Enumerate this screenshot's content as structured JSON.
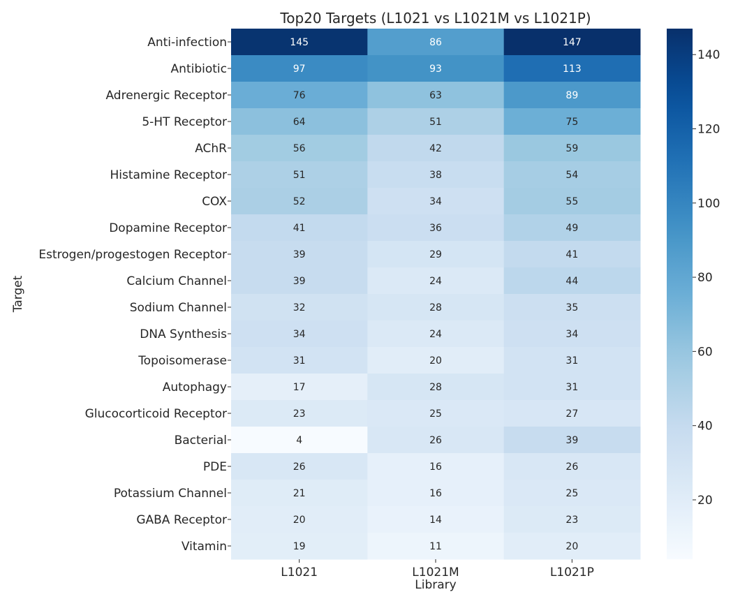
{
  "chart_data": {
    "type": "heatmap",
    "title": "Top20 Targets (L1021 vs L1021M vs L1021P)",
    "xlabel": "Library",
    "ylabel": "Target",
    "columns": [
      "L1021",
      "L1021M",
      "L1021P"
    ],
    "rows": [
      "Anti-infection",
      "Antibiotic",
      "Adrenergic Receptor",
      "5-HT Receptor",
      "AChR",
      "Histamine Receptor",
      "COX",
      "Dopamine Receptor",
      "Estrogen/progestogen Receptor",
      "Calcium Channel",
      "Sodium Channel",
      "DNA Synthesis",
      "Topoisomerase",
      "Autophagy",
      "Glucocorticoid Receptor",
      "Bacterial",
      "PDE",
      "Potassium Channel",
      "GABA Receptor",
      "Vitamin"
    ],
    "values": [
      [
        145,
        86,
        147
      ],
      [
        97,
        93,
        113
      ],
      [
        76,
        63,
        89
      ],
      [
        64,
        51,
        75
      ],
      [
        56,
        42,
        59
      ],
      [
        51,
        38,
        54
      ],
      [
        52,
        34,
        55
      ],
      [
        41,
        36,
        49
      ],
      [
        39,
        29,
        41
      ],
      [
        39,
        24,
        44
      ],
      [
        32,
        28,
        35
      ],
      [
        34,
        24,
        34
      ],
      [
        31,
        20,
        31
      ],
      [
        17,
        28,
        31
      ],
      [
        23,
        25,
        27
      ],
      [
        4,
        26,
        39
      ],
      [
        26,
        16,
        26
      ],
      [
        21,
        16,
        25
      ],
      [
        20,
        14,
        23
      ],
      [
        19,
        11,
        20
      ]
    ],
    "colormap": "Blues",
    "vmin": 4,
    "vmax": 147,
    "colorbar_ticks": [
      20,
      40,
      60,
      80,
      100,
      120,
      140
    ],
    "grid": false
  }
}
